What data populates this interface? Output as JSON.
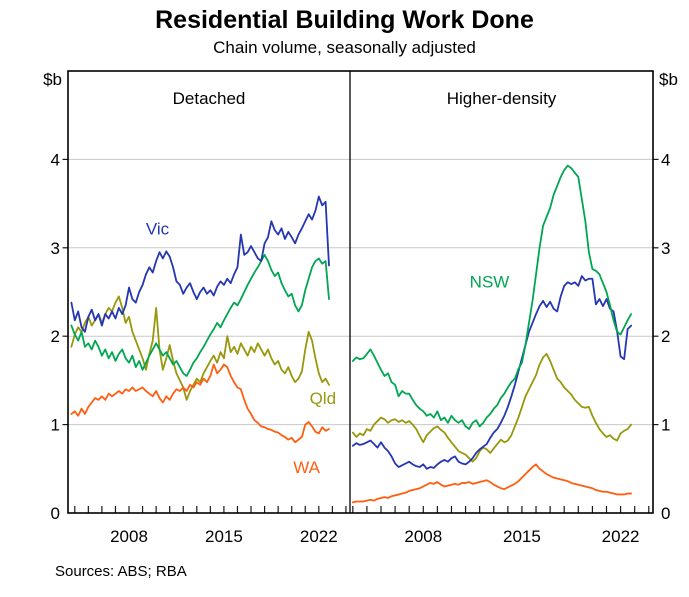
{
  "header": {
    "title": "Residential Building Work Done",
    "subtitle": "Chain volume, seasonally adjusted"
  },
  "footer": {
    "sources": "Sources: ABS; RBA"
  },
  "chart_data": {
    "type": "line",
    "title": "Residential Building Work Done",
    "subtitle": "Chain volume, seasonally adjusted",
    "unit": "$b",
    "ylim": [
      0,
      5
    ],
    "yticks": [
      0,
      1,
      2,
      3,
      4
    ],
    "grid_yticks": [
      1,
      2,
      3,
      4
    ],
    "grid_color": "#c8c8c8",
    "frame_color": "#000000",
    "x_step": 0.25,
    "xtick_label_years": [
      2008,
      2015,
      2022
    ],
    "colors": {
      "Vic": "#2436B2",
      "NSW": "#00A651",
      "Qld": "#98980D",
      "WA": "#FF5E0F"
    },
    "panels": [
      {
        "id": "detached",
        "label": "Detached",
        "x_domain": [
          2003.5,
          2024.3
        ],
        "x_start": 2003.75,
        "series": [
          {
            "name": "Qld",
            "color": "#98980D",
            "values": [
              1.88,
              2.02,
              2.1,
              2.05,
              2.15,
              2.22,
              2.12,
              2.18,
              2.25,
              2.15,
              2.25,
              2.32,
              2.28,
              2.38,
              2.45,
              2.32,
              2.15,
              2.22,
              2.05,
              1.95,
              1.85,
              1.75,
              1.62,
              1.8,
              1.95,
              2.32,
              1.85,
              1.62,
              1.75,
              1.9,
              1.72,
              1.58,
              1.5,
              1.42,
              1.28,
              1.38,
              1.45,
              1.52,
              1.48,
              1.58,
              1.65,
              1.72,
              1.78,
              1.7,
              1.82,
              1.75,
              2.0,
              1.82,
              1.88,
              1.8,
              1.92,
              1.85,
              1.78,
              1.88,
              1.82,
              1.92,
              1.85,
              1.78,
              1.85,
              1.75,
              1.68,
              1.72,
              1.62,
              1.58,
              1.65,
              1.55,
              1.48,
              1.52,
              1.6,
              1.85,
              2.05,
              1.95,
              1.75,
              1.58,
              1.48,
              1.52,
              1.45
            ]
          },
          {
            "name": "WA",
            "color": "#FF5E0F",
            "values": [
              1.12,
              1.15,
              1.1,
              1.18,
              1.12,
              1.2,
              1.25,
              1.3,
              1.28,
              1.32,
              1.28,
              1.35,
              1.32,
              1.35,
              1.38,
              1.35,
              1.4,
              1.38,
              1.42,
              1.38,
              1.4,
              1.42,
              1.38,
              1.35,
              1.32,
              1.38,
              1.3,
              1.25,
              1.32,
              1.28,
              1.35,
              1.4,
              1.38,
              1.42,
              1.38,
              1.45,
              1.42,
              1.48,
              1.45,
              1.52,
              1.48,
              1.55,
              1.68,
              1.58,
              1.62,
              1.68,
              1.65,
              1.55,
              1.48,
              1.42,
              1.4,
              1.28,
              1.18,
              1.12,
              1.05,
              1.02,
              0.98,
              0.97,
              0.95,
              0.94,
              0.92,
              0.91,
              0.88,
              0.86,
              0.83,
              0.85,
              0.8,
              0.83,
              0.86,
              1.0,
              1.03,
              0.98,
              0.92,
              0.9,
              0.97,
              0.93,
              0.95
            ]
          },
          {
            "name": "NSW",
            "color": "#00A651",
            "values": [
              2.12,
              2.02,
              1.95,
              2.05,
              1.88,
              1.92,
              1.85,
              1.95,
              1.88,
              1.78,
              1.85,
              1.75,
              1.82,
              1.72,
              1.8,
              1.85,
              1.75,
              1.7,
              1.78,
              1.65,
              1.72,
              1.62,
              1.7,
              1.78,
              1.85,
              1.92,
              1.85,
              1.78,
              1.82,
              1.75,
              1.68,
              1.72,
              1.65,
              1.58,
              1.55,
              1.62,
              1.7,
              1.75,
              1.82,
              1.88,
              1.95,
              2.02,
              2.08,
              2.15,
              2.1,
              2.18,
              2.25,
              2.32,
              2.38,
              2.35,
              2.42,
              2.5,
              2.58,
              2.65,
              2.72,
              2.78,
              2.85,
              2.92,
              2.85,
              2.75,
              2.68,
              2.72,
              2.6,
              2.52,
              2.45,
              2.48,
              2.35,
              2.28,
              2.35,
              2.52,
              2.65,
              2.78,
              2.85,
              2.88,
              2.82,
              2.85,
              2.42
            ]
          },
          {
            "name": "Vic",
            "color": "#2436B2",
            "values": [
              2.38,
              2.18,
              2.28,
              2.1,
              2.05,
              2.22,
              2.3,
              2.18,
              2.25,
              2.12,
              2.25,
              2.2,
              2.28,
              2.2,
              2.32,
              2.25,
              2.35,
              2.55,
              2.42,
              2.38,
              2.5,
              2.58,
              2.7,
              2.78,
              2.72,
              2.85,
              2.95,
              2.88,
              2.96,
              2.9,
              2.78,
              2.62,
              2.58,
              2.48,
              2.55,
              2.6,
              2.5,
              2.42,
              2.5,
              2.55,
              2.48,
              2.52,
              2.46,
              2.56,
              2.62,
              2.58,
              2.65,
              2.6,
              2.7,
              2.78,
              3.15,
              2.92,
              2.95,
              3.02,
              2.95,
              2.88,
              2.85,
              3.05,
              3.12,
              3.3,
              3.2,
              3.15,
              3.22,
              3.1,
              3.18,
              3.12,
              3.05,
              3.15,
              3.22,
              3.3,
              3.38,
              3.32,
              3.42,
              3.58,
              3.48,
              3.52,
              2.8
            ]
          }
        ],
        "labels": [
          {
            "text": "Vic",
            "color": "#2436B2",
            "year": 2010.1,
            "value": 3.22
          },
          {
            "text": "Qld",
            "color": "#98980D",
            "year": 2022.3,
            "value": 1.3
          },
          {
            "text": "WA",
            "color": "#FF5E0F",
            "year": 2021.1,
            "value": 0.52
          }
        ]
      },
      {
        "id": "higher-density",
        "label": "Higher-density",
        "x_domain": [
          2002.8,
          2024.3
        ],
        "x_start": 2003.0,
        "series": [
          {
            "name": "WA",
            "color": "#FF5E0F",
            "values": [
              0.12,
              0.13,
              0.13,
              0.13,
              0.14,
              0.15,
              0.14,
              0.16,
              0.17,
              0.18,
              0.17,
              0.19,
              0.2,
              0.21,
              0.22,
              0.23,
              0.25,
              0.26,
              0.27,
              0.28,
              0.3,
              0.32,
              0.34,
              0.33,
              0.35,
              0.32,
              0.3,
              0.31,
              0.32,
              0.33,
              0.32,
              0.34,
              0.34,
              0.35,
              0.33,
              0.34,
              0.35,
              0.36,
              0.37,
              0.35,
              0.32,
              0.3,
              0.28,
              0.27,
              0.29,
              0.31,
              0.33,
              0.36,
              0.4,
              0.44,
              0.48,
              0.52,
              0.55,
              0.5,
              0.47,
              0.44,
              0.42,
              0.4,
              0.39,
              0.38,
              0.37,
              0.36,
              0.34,
              0.33,
              0.32,
              0.31,
              0.3,
              0.29,
              0.28,
              0.26,
              0.25,
              0.24,
              0.24,
              0.23,
              0.22,
              0.21,
              0.21,
              0.21,
              0.22,
              0.22
            ]
          },
          {
            "name": "Qld",
            "color": "#98980D",
            "values": [
              0.91,
              0.86,
              0.9,
              0.88,
              0.95,
              0.93,
              1.0,
              1.04,
              1.08,
              1.06,
              1.02,
              1.05,
              1.06,
              1.03,
              1.05,
              1.02,
              1.04,
              1.0,
              0.95,
              0.87,
              0.8,
              0.88,
              0.92,
              0.96,
              0.98,
              0.94,
              0.91,
              0.85,
              0.8,
              0.75,
              0.7,
              0.68,
              0.66,
              0.62,
              0.58,
              0.62,
              0.7,
              0.74,
              0.72,
              0.68,
              0.73,
              0.78,
              0.83,
              0.8,
              0.82,
              0.88,
              0.98,
              1.08,
              1.2,
              1.32,
              1.4,
              1.48,
              1.56,
              1.68,
              1.76,
              1.8,
              1.72,
              1.62,
              1.52,
              1.48,
              1.42,
              1.38,
              1.34,
              1.28,
              1.24,
              1.2,
              1.19,
              1.2,
              1.1,
              1.02,
              0.95,
              0.9,
              0.86,
              0.88,
              0.84,
              0.82,
              0.9,
              0.93,
              0.95,
              1.0
            ]
          },
          {
            "name": "Vic",
            "color": "#2436B2",
            "values": [
              0.76,
              0.79,
              0.77,
              0.78,
              0.8,
              0.82,
              0.78,
              0.74,
              0.8,
              0.74,
              0.7,
              0.64,
              0.56,
              0.52,
              0.54,
              0.56,
              0.58,
              0.55,
              0.53,
              0.52,
              0.55,
              0.5,
              0.52,
              0.51,
              0.55,
              0.58,
              0.6,
              0.58,
              0.62,
              0.64,
              0.58,
              0.56,
              0.55,
              0.58,
              0.62,
              0.68,
              0.72,
              0.75,
              0.78,
              0.85,
              0.91,
              0.95,
              1.02,
              1.1,
              1.2,
              1.32,
              1.45,
              1.6,
              1.75,
              1.9,
              2.05,
              2.15,
              2.25,
              2.34,
              2.4,
              2.33,
              2.39,
              2.31,
              2.28,
              2.45,
              2.57,
              2.61,
              2.59,
              2.61,
              2.57,
              2.68,
              2.63,
              2.65,
              2.65,
              2.36,
              2.42,
              2.34,
              2.42,
              2.31,
              2.28,
              2.06,
              1.77,
              1.74,
              2.08,
              2.12
            ]
          },
          {
            "name": "NSW",
            "color": "#00A651",
            "values": [
              1.72,
              1.76,
              1.74,
              1.75,
              1.8,
              1.85,
              1.78,
              1.7,
              1.62,
              1.55,
              1.58,
              1.48,
              1.45,
              1.32,
              1.38,
              1.35,
              1.35,
              1.28,
              1.22,
              1.18,
              1.15,
              1.1,
              1.12,
              1.08,
              1.15,
              1.05,
              1.08,
              1.02,
              1.1,
              1.05,
              1.02,
              1.05,
              0.98,
              0.95,
              1.02,
              1.05,
              0.98,
              1.02,
              1.08,
              1.12,
              1.18,
              1.22,
              1.3,
              1.35,
              1.42,
              1.48,
              1.52,
              1.63,
              1.7,
              1.9,
              2.15,
              2.4,
              2.7,
              3.0,
              3.25,
              3.35,
              3.45,
              3.6,
              3.7,
              3.8,
              3.88,
              3.93,
              3.9,
              3.85,
              3.8,
              3.55,
              3.3,
              2.95,
              2.76,
              2.74,
              2.7,
              2.6,
              2.5,
              2.35,
              2.18,
              2.05,
              2.02,
              2.1,
              2.18,
              2.25
            ]
          }
        ],
        "labels": [
          {
            "text": "NSW",
            "color": "#00A651",
            "year": 2012.7,
            "value": 2.62
          }
        ]
      }
    ]
  }
}
